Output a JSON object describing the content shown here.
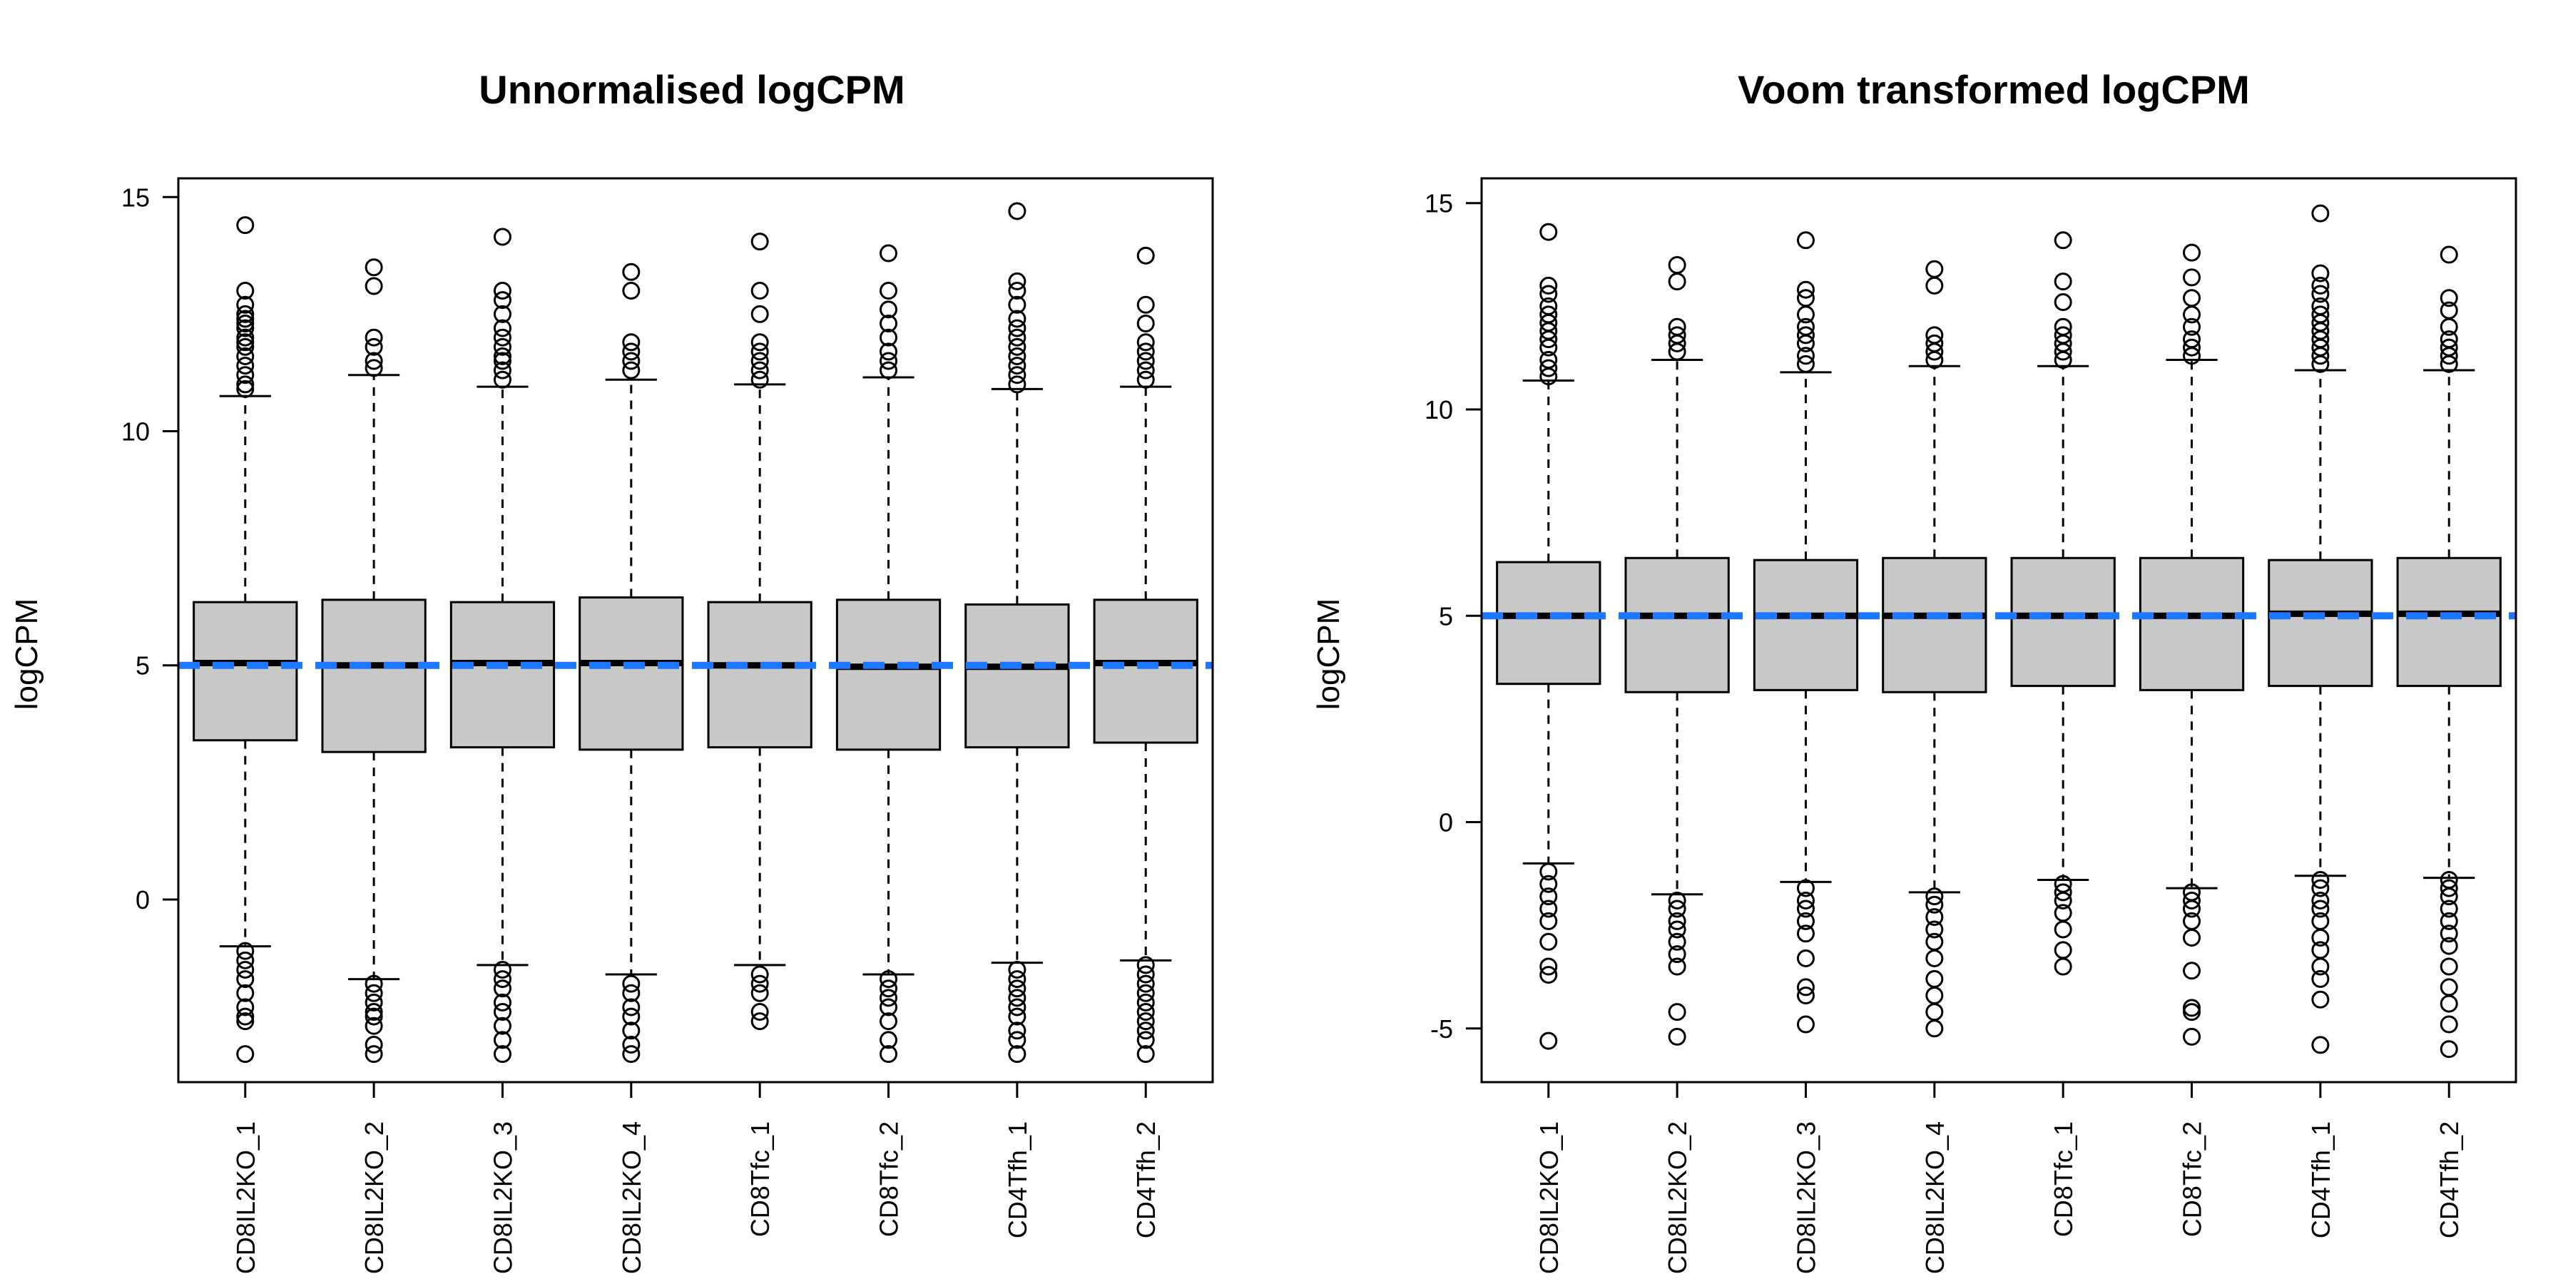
{
  "chart_data": [
    {
      "type": "box",
      "title": "Unnormalised logCPM",
      "xlabel": "",
      "ylabel": "logCPM",
      "ylim": [
        -3.9,
        15.4
      ],
      "yticks": [
        0,
        5,
        10,
        15
      ],
      "reference_line": {
        "y": 5.0,
        "color": "#1e78ff",
        "style": "dashed"
      },
      "box_fill": "#c8c8c8",
      "categories": [
        "CD8IL2KO_1",
        "CD8IL2KO_2",
        "CD8IL2KO_3",
        "CD8IL2KO_4",
        "CD8Tfc_1",
        "CD8Tfc_2",
        "CD4Tfh_1",
        "CD4Tfh_2"
      ],
      "boxes": [
        {
          "label": "CD8IL2KO_1",
          "whisker_low": -1.0,
          "q1": 3.4,
          "median": 5.05,
          "q3": 6.35,
          "whisker_high": 10.75,
          "outliers_high": [
            10.9,
            11.0,
            11.2,
            11.4,
            11.6,
            11.8,
            11.9,
            12.0,
            12.2,
            12.3,
            12.4,
            12.5,
            12.7,
            13.0,
            14.4
          ],
          "outliers_low": [
            -1.1,
            -1.3,
            -1.5,
            -1.7,
            -2.0,
            -2.3,
            -2.5,
            -2.6,
            -3.3
          ]
        },
        {
          "label": "CD8IL2KO_2",
          "whisker_low": -1.7,
          "q1": 3.15,
          "median": 5.0,
          "q3": 6.4,
          "whisker_high": 11.2,
          "outliers_high": [
            11.35,
            11.5,
            11.8,
            12.0,
            13.1,
            13.5
          ],
          "outliers_low": [
            -1.8,
            -2.0,
            -2.2,
            -2.4,
            -2.5,
            -2.7,
            -3.1,
            -3.3
          ]
        },
        {
          "label": "CD8IL2KO_3",
          "whisker_low": -1.4,
          "q1": 3.25,
          "median": 5.05,
          "q3": 6.35,
          "whisker_high": 10.95,
          "outliers_high": [
            11.1,
            11.3,
            11.5,
            11.6,
            11.8,
            12.0,
            12.2,
            12.5,
            12.8,
            13.0,
            14.15
          ],
          "outliers_low": [
            -1.5,
            -1.7,
            -1.9,
            -2.2,
            -2.4,
            -2.7,
            -3.0,
            -3.3
          ]
        },
        {
          "label": "CD8IL2KO_4",
          "whisker_low": -1.6,
          "q1": 3.2,
          "median": 5.05,
          "q3": 6.45,
          "whisker_high": 11.1,
          "outliers_high": [
            11.3,
            11.5,
            11.7,
            11.9,
            13.0,
            13.4
          ],
          "outliers_low": [
            -1.8,
            -2.0,
            -2.3,
            -2.5,
            -2.8,
            -3.1,
            -3.3
          ]
        },
        {
          "label": "CD8Tfc_1",
          "whisker_low": -1.4,
          "q1": 3.25,
          "median": 5.0,
          "q3": 6.35,
          "whisker_high": 11.0,
          "outliers_high": [
            11.1,
            11.3,
            11.5,
            11.7,
            11.9,
            12.5,
            13.0,
            14.05
          ],
          "outliers_low": [
            -1.6,
            -1.8,
            -2.0,
            -2.4,
            -2.6
          ]
        },
        {
          "label": "CD8Tfc_2",
          "whisker_low": -1.6,
          "q1": 3.2,
          "median": 4.97,
          "q3": 6.4,
          "whisker_high": 11.15,
          "outliers_high": [
            11.3,
            11.5,
            11.7,
            12.0,
            12.3,
            12.6,
            13.0,
            13.8
          ],
          "outliers_low": [
            -1.7,
            -1.9,
            -2.1,
            -2.3,
            -2.6,
            -3.0,
            -3.3
          ]
        },
        {
          "label": "CD4Tfh_1",
          "whisker_low": -1.35,
          "q1": 3.25,
          "median": 4.97,
          "q3": 6.3,
          "whisker_high": 10.9,
          "outliers_high": [
            11.0,
            11.2,
            11.4,
            11.6,
            11.8,
            12.0,
            12.2,
            12.4,
            12.7,
            13.0,
            13.2,
            14.7
          ],
          "outliers_low": [
            -1.5,
            -1.7,
            -1.9,
            -2.1,
            -2.3,
            -2.5,
            -2.8,
            -3.0,
            -3.3
          ]
        },
        {
          "label": "CD4Tfh_2",
          "whisker_low": -1.3,
          "q1": 3.35,
          "median": 5.05,
          "q3": 6.4,
          "whisker_high": 10.95,
          "outliers_high": [
            11.1,
            11.3,
            11.5,
            11.7,
            11.9,
            12.3,
            12.7,
            13.75
          ],
          "outliers_low": [
            -1.4,
            -1.6,
            -1.8,
            -2.0,
            -2.2,
            -2.4,
            -2.6,
            -2.8,
            -3.0,
            -3.3
          ]
        }
      ]
    },
    {
      "type": "box",
      "title": "Voom transformed logCPM",
      "xlabel": "",
      "ylabel": "logCPM",
      "ylim": [
        -6.3,
        15.6
      ],
      "yticks": [
        -5,
        0,
        5,
        10,
        15
      ],
      "reference_line": {
        "y": 5.0,
        "color": "#1e78ff",
        "style": "dashed"
      },
      "box_fill": "#c8c8c8",
      "categories": [
        "CD8IL2KO_1",
        "CD8IL2KO_2",
        "CD8IL2KO_3",
        "CD8IL2KO_4",
        "CD8Tfc_1",
        "CD8Tfc_2",
        "CD4Tfh_1",
        "CD4Tfh_2"
      ],
      "boxes": [
        {
          "label": "CD8IL2KO_1",
          "whisker_low": -1.0,
          "q1": 3.35,
          "median": 5.0,
          "q3": 6.3,
          "whisker_high": 10.7,
          "outliers_high": [
            10.8,
            11.0,
            11.2,
            11.5,
            11.7,
            11.9,
            12.1,
            12.3,
            12.5,
            12.8,
            13.0,
            14.3
          ],
          "outliers_low": [
            -1.2,
            -1.5,
            -1.8,
            -2.1,
            -2.4,
            -2.9,
            -3.5,
            -3.7,
            -5.3
          ]
        },
        {
          "label": "CD8IL2KO_2",
          "whisker_low": -1.75,
          "q1": 3.15,
          "median": 5.0,
          "q3": 6.4,
          "whisker_high": 11.2,
          "outliers_high": [
            11.4,
            11.6,
            11.8,
            12.0,
            13.1,
            13.5
          ],
          "outliers_low": [
            -1.9,
            -2.1,
            -2.4,
            -2.6,
            -2.9,
            -3.2,
            -3.5,
            -4.6,
            -5.2
          ]
        },
        {
          "label": "CD8IL2KO_3",
          "whisker_low": -1.45,
          "q1": 3.2,
          "median": 5.0,
          "q3": 6.35,
          "whisker_high": 10.9,
          "outliers_high": [
            11.1,
            11.3,
            11.6,
            11.8,
            12.0,
            12.3,
            12.7,
            12.9,
            14.1
          ],
          "outliers_low": [
            -1.6,
            -1.9,
            -2.1,
            -2.4,
            -2.7,
            -3.3,
            -4.0,
            -4.2,
            -4.9
          ]
        },
        {
          "label": "CD8IL2KO_4",
          "whisker_low": -1.7,
          "q1": 3.15,
          "median": 5.0,
          "q3": 6.4,
          "whisker_high": 11.05,
          "outliers_high": [
            11.2,
            11.4,
            11.6,
            11.8,
            13.0,
            13.4
          ],
          "outliers_low": [
            -1.8,
            -2.0,
            -2.3,
            -2.6,
            -2.9,
            -3.3,
            -3.8,
            -4.2,
            -4.6,
            -5.0
          ]
        },
        {
          "label": "CD8Tfc_1",
          "whisker_low": -1.4,
          "q1": 3.3,
          "median": 5.0,
          "q3": 6.4,
          "whisker_high": 11.05,
          "outliers_high": [
            11.2,
            11.4,
            11.6,
            11.8,
            12.0,
            12.6,
            13.1,
            14.1
          ],
          "outliers_low": [
            -1.5,
            -1.7,
            -1.9,
            -2.2,
            -2.6,
            -3.1,
            -3.5
          ]
        },
        {
          "label": "CD8Tfc_2",
          "whisker_low": -1.6,
          "q1": 3.2,
          "median": 5.0,
          "q3": 6.4,
          "whisker_high": 11.2,
          "outliers_high": [
            11.3,
            11.5,
            11.7,
            12.0,
            12.3,
            12.7,
            13.2,
            13.8
          ],
          "outliers_low": [
            -1.7,
            -1.9,
            -2.1,
            -2.4,
            -2.8,
            -3.6,
            -4.5,
            -4.6,
            -5.2
          ]
        },
        {
          "label": "CD4Tfh_1",
          "whisker_low": -1.3,
          "q1": 3.3,
          "median": 5.05,
          "q3": 6.35,
          "whisker_high": 10.95,
          "outliers_high": [
            11.1,
            11.3,
            11.5,
            11.7,
            11.9,
            12.1,
            12.3,
            12.5,
            12.8,
            13.0,
            13.3,
            14.75
          ],
          "outliers_low": [
            -1.4,
            -1.6,
            -1.9,
            -2.1,
            -2.4,
            -2.8,
            -3.1,
            -3.5,
            -3.8,
            -4.3,
            -5.4
          ]
        },
        {
          "label": "CD4Tfh_2",
          "whisker_low": -1.35,
          "q1": 3.3,
          "median": 5.05,
          "q3": 6.4,
          "whisker_high": 10.95,
          "outliers_high": [
            11.1,
            11.3,
            11.5,
            11.7,
            12.0,
            12.4,
            12.7,
            13.75
          ],
          "outliers_low": [
            -1.4,
            -1.6,
            -1.8,
            -2.1,
            -2.4,
            -2.7,
            -3.0,
            -3.5,
            -4.0,
            -4.4,
            -4.9,
            -5.5
          ]
        }
      ]
    }
  ]
}
